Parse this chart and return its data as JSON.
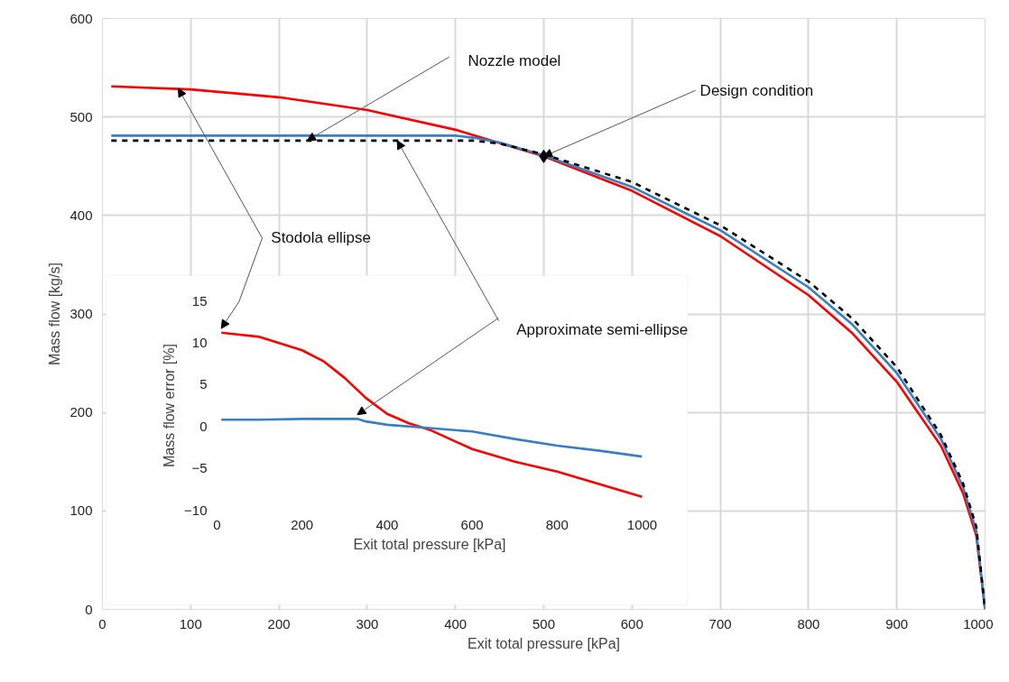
{
  "chart_data": [
    {
      "type": "line",
      "xlabel": "Exit total pressure [kPa]",
      "ylabel": "Mass flow [kg/s]",
      "xlim": [
        0,
        1000
      ],
      "ylim": [
        0,
        600
      ],
      "xticks": [
        0,
        100,
        200,
        300,
        400,
        500,
        600,
        700,
        800,
        900,
        1000
      ],
      "yticks": [
        0,
        100,
        200,
        300,
        400,
        500,
        600
      ],
      "grid": true,
      "series": [
        {
          "color": "#ff0000",
          "line_style": "solid",
          "x": [
            10,
            100,
            200,
            300,
            400,
            500,
            600,
            700,
            800,
            850,
            900,
            950,
            975,
            990,
            1000
          ],
          "values": [
            531,
            528,
            520,
            507,
            487,
            460,
            425,
            379,
            319,
            280,
            231,
            166,
            118,
            75,
            0
          ]
        },
        {
          "color": "#3a7fc4",
          "line_style": "solid",
          "x": [
            10,
            100,
            200,
            300,
            400,
            420,
            450,
            500,
            600,
            700,
            800,
            850,
            900,
            950,
            975,
            990,
            1000
          ],
          "values": [
            481,
            481,
            481,
            481,
            481,
            479,
            474,
            461,
            429,
            385,
            327,
            289,
            240,
            173,
            124,
            80,
            0
          ]
        },
        {
          "color": "#000000",
          "line_style": "dashed",
          "x": [
            10,
            100,
            200,
            300,
            420,
            450,
            500,
            600,
            700,
            800,
            850,
            900,
            950,
            975,
            990,
            1000
          ],
          "values": [
            476,
            476,
            476,
            476,
            476,
            473,
            462,
            434,
            390,
            333,
            295,
            246,
            177,
            128,
            84,
            0
          ]
        },
        {
          "type": "scatter",
          "marker": "diamond",
          "color": "#000000",
          "x": [
            500
          ],
          "values": [
            460
          ]
        }
      ],
      "annotations": [
        {
          "text": "Nozzle model",
          "x": 232,
          "y": 476
        },
        {
          "text": "Design condition",
          "x": 500,
          "y": 460
        },
        {
          "text": "Stodola ellipse",
          "x": 86,
          "y": 529
        },
        {
          "text": "Approximate semi-ellipse",
          "x": 334,
          "y": 476
        }
      ]
    },
    {
      "type": "line",
      "xlabel": "Exit total pressure [kPa]",
      "ylabel": "Mass flow error [%]",
      "xlim": [
        0,
        1000
      ],
      "ylim": [
        -10,
        15
      ],
      "xticks": [
        0,
        200,
        400,
        600,
        800,
        1000
      ],
      "yticks": [
        -10,
        -5,
        0,
        5,
        10,
        15
      ],
      "grid": false,
      "series": [
        {
          "color": "#ff0000",
          "line_style": "solid",
          "x": [
            10,
            100,
            200,
            250,
            300,
            350,
            400,
            450,
            500,
            600,
            700,
            800,
            900,
            1000
          ],
          "values": [
            11.2,
            10.7,
            9.1,
            7.8,
            5.8,
            3.4,
            1.5,
            0.4,
            -0.4,
            -2.7,
            -4.2,
            -5.4,
            -6.9,
            -8.4
          ]
        },
        {
          "color": "#3a7fc4",
          "line_style": "solid",
          "x": [
            10,
            100,
            200,
            330,
            350,
            400,
            500,
            600,
            700,
            800,
            900,
            1000
          ],
          "values": [
            0.8,
            0.8,
            0.9,
            0.9,
            0.6,
            0.2,
            -0.2,
            -0.6,
            -1.5,
            -2.3,
            -2.9,
            -3.6
          ]
        }
      ]
    }
  ]
}
